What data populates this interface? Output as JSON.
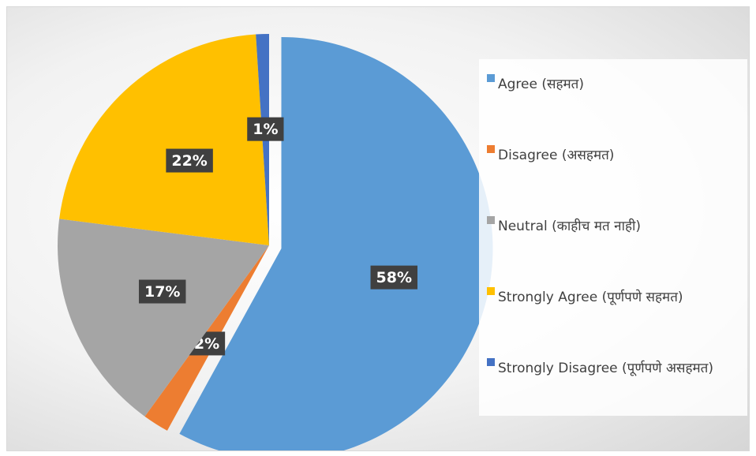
{
  "chart_data": {
    "type": "pie",
    "categories": [
      "Agree (सहमत)",
      "Disagree (असहमत)",
      "Neutral (काहीच मत नाही)",
      "Strongly Agree (पूर्णपणे सहमत)",
      "Strongly Disagree (पूर्णपणे असहमत)"
    ],
    "values": [
      58,
      2,
      17,
      22,
      1
    ],
    "value_labels": [
      "58%",
      "2%",
      "17%",
      "22%",
      "1%"
    ],
    "colors": [
      "#5b9bd5",
      "#ed7d31",
      "#a5a5a5",
      "#ffc000",
      "#4472c4"
    ],
    "legend": "right"
  }
}
